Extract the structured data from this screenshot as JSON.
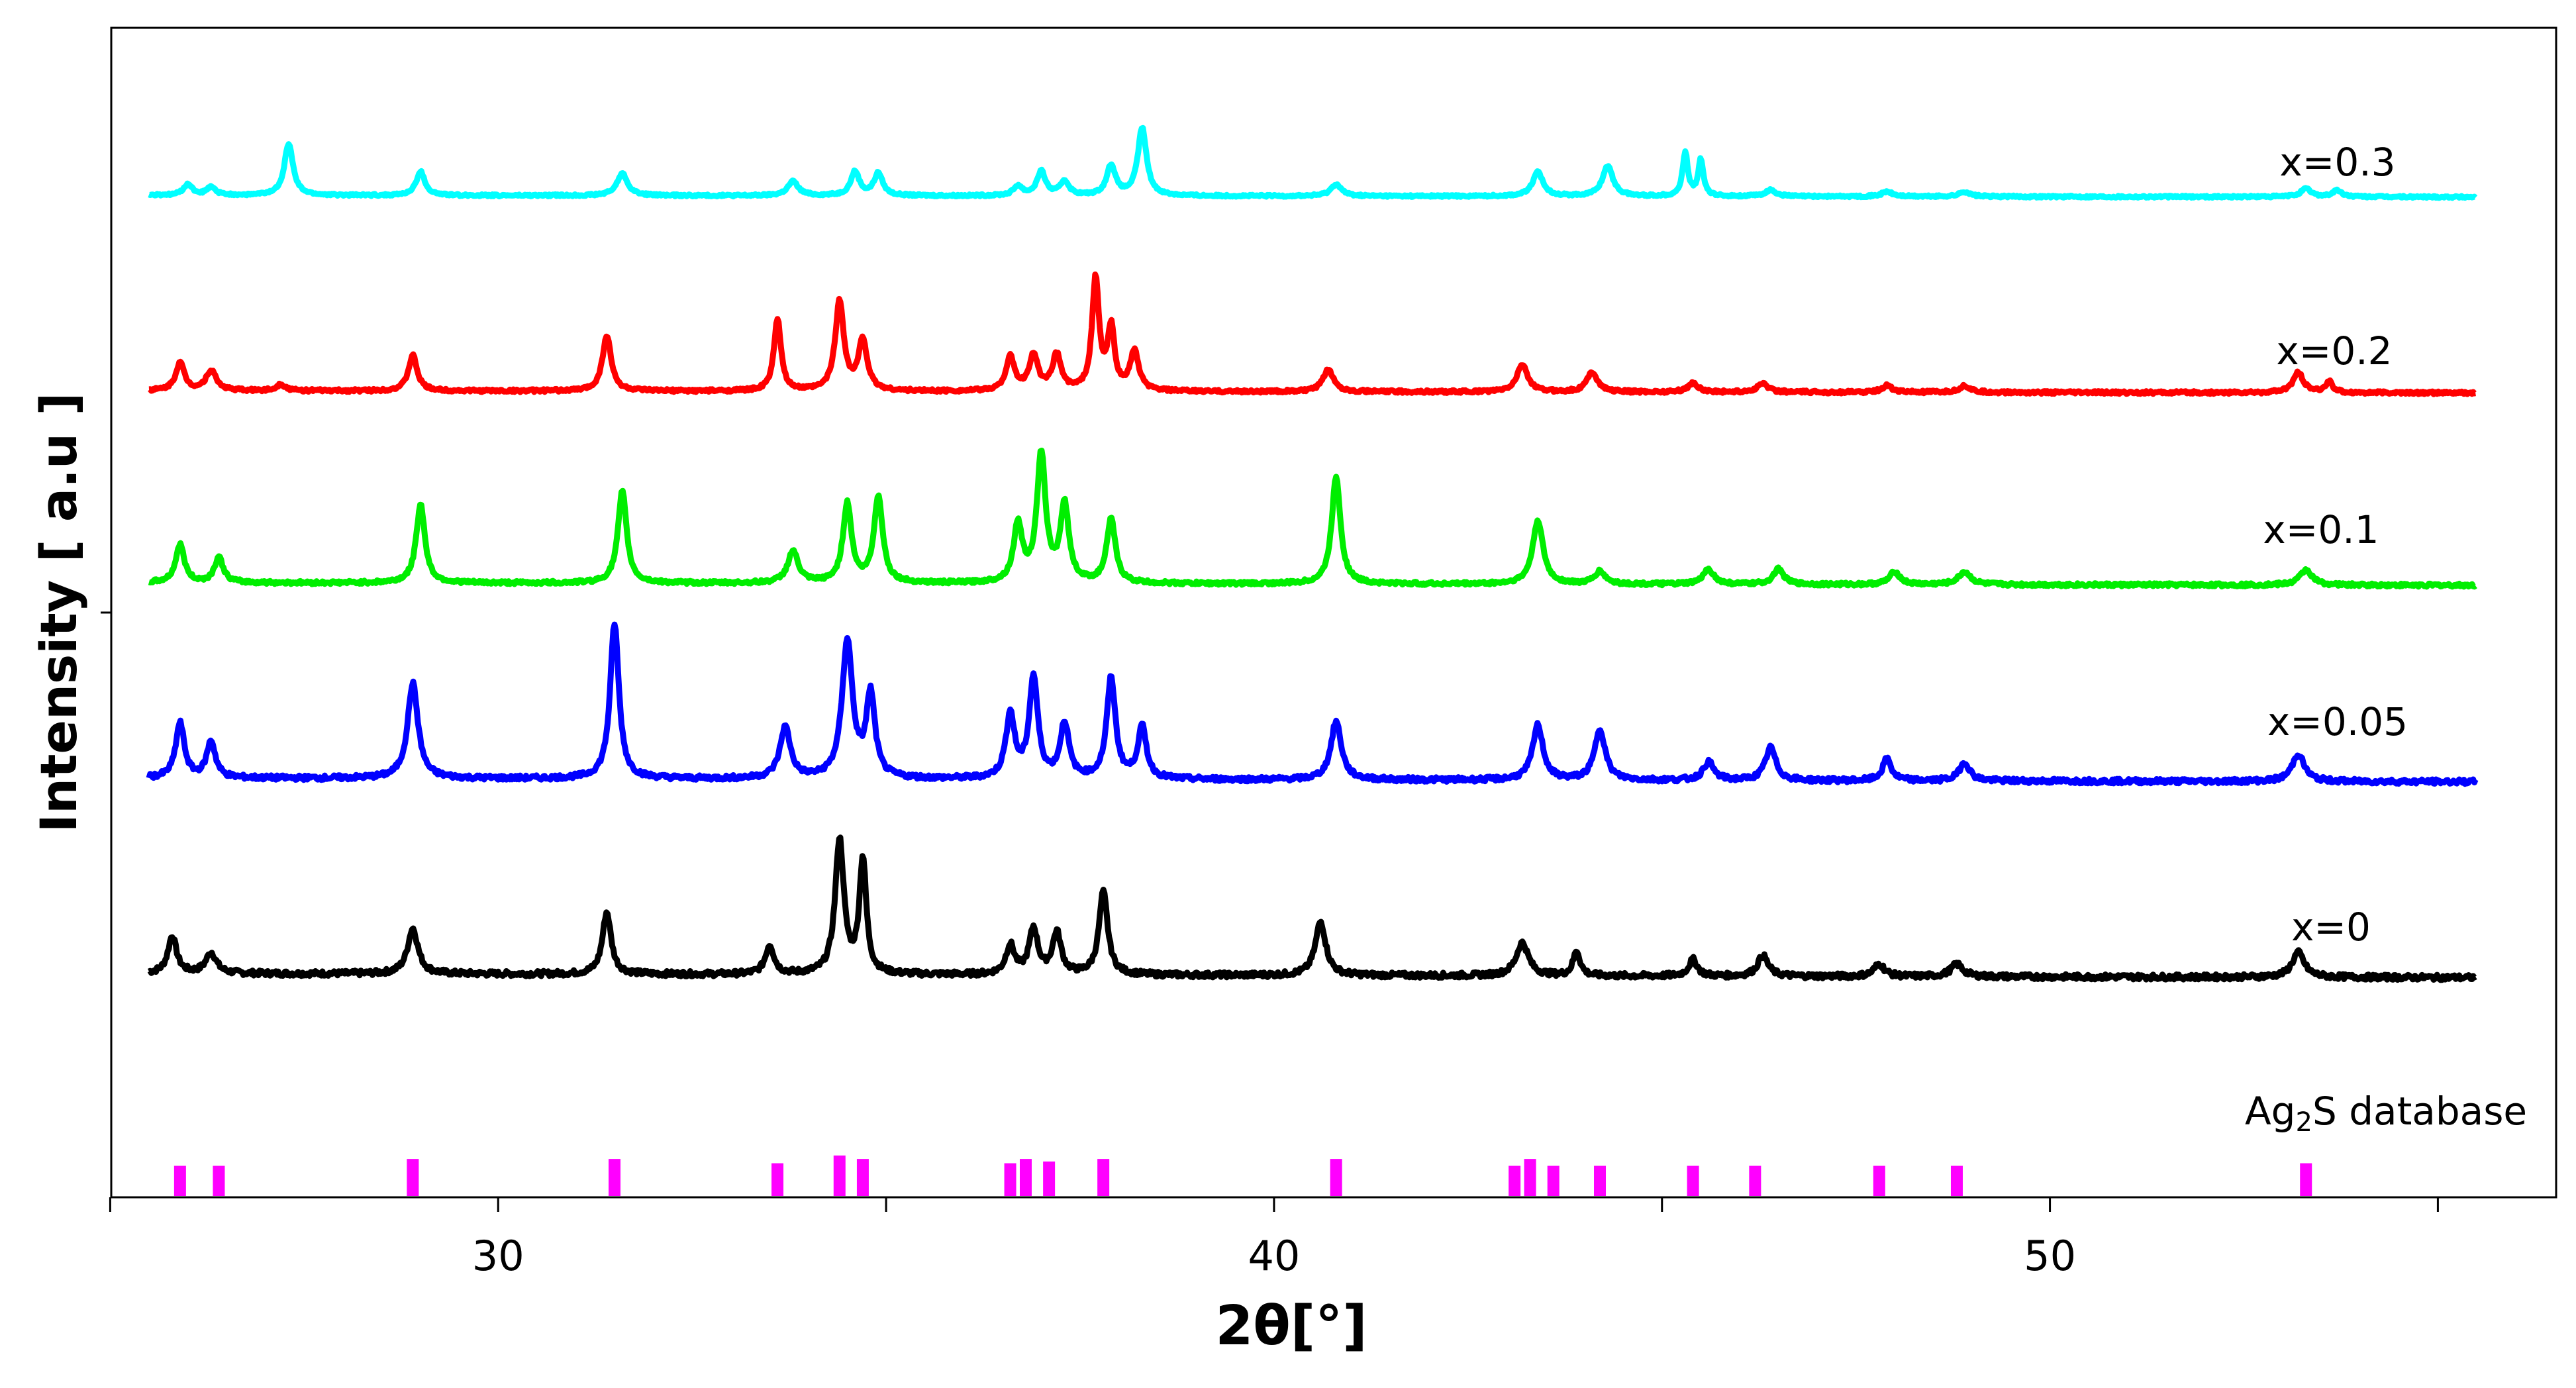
{
  "chart_data": {
    "type": "line",
    "xlabel": "2θ[°]",
    "ylabel": "Intensity [ a.u ]",
    "x_ticks": [
      30,
      40,
      50
    ],
    "xlim": [
      25,
      55
    ],
    "grid": false,
    "legend": "labels beside each trace, right side",
    "reference": {
      "label_main": "Ag",
      "label_sub": "2",
      "label_tail": "S database",
      "color": "#ff00ff",
      "peaks": [
        {
          "x": 25.9,
          "h": 0.35
        },
        {
          "x": 26.4,
          "h": 0.35
        },
        {
          "x": 28.9,
          "h": 0.43
        },
        {
          "x": 31.5,
          "h": 0.43
        },
        {
          "x": 33.6,
          "h": 0.38
        },
        {
          "x": 34.4,
          "h": 0.47
        },
        {
          "x": 34.7,
          "h": 0.43
        },
        {
          "x": 36.6,
          "h": 0.38
        },
        {
          "x": 36.8,
          "h": 0.43
        },
        {
          "x": 37.1,
          "h": 0.4
        },
        {
          "x": 37.8,
          "h": 0.43
        },
        {
          "x": 40.8,
          "h": 0.43
        },
        {
          "x": 43.1,
          "h": 0.35
        },
        {
          "x": 43.3,
          "h": 0.43
        },
        {
          "x": 43.6,
          "h": 0.35
        },
        {
          "x": 44.2,
          "h": 0.35
        },
        {
          "x": 45.4,
          "h": 0.35
        },
        {
          "x": 46.2,
          "h": 0.35
        },
        {
          "x": 47.8,
          "h": 0.35
        },
        {
          "x": 48.8,
          "h": 0.35
        },
        {
          "x": 53.3,
          "h": 0.38
        }
      ]
    },
    "series": [
      {
        "name": "x=0",
        "color": "#000000",
        "baseline": [
          0.0,
          -0.2
        ],
        "peaks": [
          {
            "x": 25.8,
            "h": 0.18,
            "w": 0.1
          },
          {
            "x": 26.3,
            "h": 0.1,
            "w": 0.12
          },
          {
            "x": 28.9,
            "h": 0.22,
            "w": 0.12
          },
          {
            "x": 31.4,
            "h": 0.3,
            "w": 0.1
          },
          {
            "x": 33.5,
            "h": 0.14,
            "w": 0.1
          },
          {
            "x": 34.4,
            "h": 0.65,
            "w": 0.1
          },
          {
            "x": 34.7,
            "h": 0.55,
            "w": 0.08
          },
          {
            "x": 36.6,
            "h": 0.14,
            "w": 0.1
          },
          {
            "x": 36.9,
            "h": 0.22,
            "w": 0.1
          },
          {
            "x": 37.2,
            "h": 0.2,
            "w": 0.1
          },
          {
            "x": 37.8,
            "h": 0.4,
            "w": 0.1
          },
          {
            "x": 40.6,
            "h": 0.26,
            "w": 0.12
          },
          {
            "x": 43.2,
            "h": 0.16,
            "w": 0.14
          },
          {
            "x": 43.9,
            "h": 0.12,
            "w": 0.08
          },
          {
            "x": 45.4,
            "h": 0.08,
            "w": 0.1
          },
          {
            "x": 46.3,
            "h": 0.1,
            "w": 0.12
          },
          {
            "x": 47.8,
            "h": 0.06,
            "w": 0.12
          },
          {
            "x": 48.8,
            "h": 0.06,
            "w": 0.14
          },
          {
            "x": 53.2,
            "h": 0.12,
            "w": 0.14
          }
        ]
      },
      {
        "name": "x=0.05",
        "color": "#0000ff",
        "baseline": [
          0.0,
          -0.2
        ],
        "peaks": [
          {
            "x": 25.9,
            "h": 0.3,
            "w": 0.1
          },
          {
            "x": 26.3,
            "h": 0.2,
            "w": 0.1
          },
          {
            "x": 28.9,
            "h": 0.52,
            "w": 0.12
          },
          {
            "x": 31.5,
            "h": 0.85,
            "w": 0.1
          },
          {
            "x": 33.7,
            "h": 0.28,
            "w": 0.12
          },
          {
            "x": 34.5,
            "h": 0.75,
            "w": 0.12
          },
          {
            "x": 34.8,
            "h": 0.45,
            "w": 0.1
          },
          {
            "x": 36.6,
            "h": 0.35,
            "w": 0.1
          },
          {
            "x": 36.9,
            "h": 0.55,
            "w": 0.1
          },
          {
            "x": 37.3,
            "h": 0.3,
            "w": 0.1
          },
          {
            "x": 37.9,
            "h": 0.55,
            "w": 0.1
          },
          {
            "x": 38.3,
            "h": 0.28,
            "w": 0.1
          },
          {
            "x": 40.8,
            "h": 0.32,
            "w": 0.12
          },
          {
            "x": 43.4,
            "h": 0.3,
            "w": 0.12
          },
          {
            "x": 44.2,
            "h": 0.28,
            "w": 0.12
          },
          {
            "x": 45.6,
            "h": 0.1,
            "w": 0.12
          },
          {
            "x": 46.4,
            "h": 0.18,
            "w": 0.12
          },
          {
            "x": 47.9,
            "h": 0.12,
            "w": 0.1
          },
          {
            "x": 48.9,
            "h": 0.1,
            "w": 0.12
          },
          {
            "x": 53.2,
            "h": 0.15,
            "w": 0.14
          }
        ]
      },
      {
        "name": "x=0.1",
        "color": "#00ee00",
        "baseline": [
          0.0,
          -0.2
        ],
        "peaks": [
          {
            "x": 25.9,
            "h": 0.3,
            "w": 0.1
          },
          {
            "x": 26.4,
            "h": 0.2,
            "w": 0.1
          },
          {
            "x": 29.0,
            "h": 0.62,
            "w": 0.1
          },
          {
            "x": 31.6,
            "h": 0.72,
            "w": 0.1
          },
          {
            "x": 33.8,
            "h": 0.25,
            "w": 0.12
          },
          {
            "x": 34.5,
            "h": 0.62,
            "w": 0.1
          },
          {
            "x": 34.9,
            "h": 0.68,
            "w": 0.1
          },
          {
            "x": 36.7,
            "h": 0.45,
            "w": 0.1
          },
          {
            "x": 37.0,
            "h": 1.0,
            "w": 0.1
          },
          {
            "x": 37.3,
            "h": 0.6,
            "w": 0.1
          },
          {
            "x": 37.9,
            "h": 0.5,
            "w": 0.1
          },
          {
            "x": 40.8,
            "h": 0.85,
            "w": 0.1
          },
          {
            "x": 43.4,
            "h": 0.5,
            "w": 0.12
          },
          {
            "x": 44.2,
            "h": 0.1,
            "w": 0.12
          },
          {
            "x": 45.6,
            "h": 0.12,
            "w": 0.12
          },
          {
            "x": 46.5,
            "h": 0.12,
            "w": 0.12
          },
          {
            "x": 48.0,
            "h": 0.1,
            "w": 0.12
          },
          {
            "x": 48.9,
            "h": 0.1,
            "w": 0.14
          },
          {
            "x": 53.3,
            "h": 0.12,
            "w": 0.14
          }
        ]
      },
      {
        "name": "x=0.2",
        "color": "#ff0000",
        "baseline": [
          0.0,
          -0.2
        ],
        "peaks": [
          {
            "x": 25.9,
            "h": 0.25,
            "w": 0.1
          },
          {
            "x": 26.3,
            "h": 0.18,
            "w": 0.12
          },
          {
            "x": 27.2,
            "h": 0.06,
            "w": 0.1
          },
          {
            "x": 28.9,
            "h": 0.32,
            "w": 0.1
          },
          {
            "x": 31.4,
            "h": 0.5,
            "w": 0.1
          },
          {
            "x": 33.6,
            "h": 0.65,
            "w": 0.08
          },
          {
            "x": 34.4,
            "h": 0.8,
            "w": 0.1
          },
          {
            "x": 34.7,
            "h": 0.45,
            "w": 0.1
          },
          {
            "x": 36.6,
            "h": 0.3,
            "w": 0.1
          },
          {
            "x": 36.9,
            "h": 0.32,
            "w": 0.1
          },
          {
            "x": 37.2,
            "h": 0.32,
            "w": 0.1
          },
          {
            "x": 37.7,
            "h": 1.0,
            "w": 0.08
          },
          {
            "x": 37.9,
            "h": 0.55,
            "w": 0.08
          },
          {
            "x": 38.2,
            "h": 0.35,
            "w": 0.1
          },
          {
            "x": 40.7,
            "h": 0.2,
            "w": 0.12
          },
          {
            "x": 43.2,
            "h": 0.25,
            "w": 0.12
          },
          {
            "x": 44.1,
            "h": 0.18,
            "w": 0.12
          },
          {
            "x": 45.4,
            "h": 0.08,
            "w": 0.12
          },
          {
            "x": 46.3,
            "h": 0.08,
            "w": 0.12
          },
          {
            "x": 47.9,
            "h": 0.06,
            "w": 0.12
          },
          {
            "x": 48.9,
            "h": 0.06,
            "w": 0.12
          },
          {
            "x": 53.2,
            "h": 0.18,
            "w": 0.12
          },
          {
            "x": 53.6,
            "h": 0.1,
            "w": 0.08
          }
        ]
      },
      {
        "name": "x=0.3",
        "color": "#00ffff",
        "baseline": [
          0.0,
          -0.2
        ],
        "peaks": [
          {
            "x": 26.0,
            "h": 0.14,
            "w": 0.1
          },
          {
            "x": 26.3,
            "h": 0.1,
            "w": 0.1
          },
          {
            "x": 27.3,
            "h": 0.65,
            "w": 0.1
          },
          {
            "x": 29.0,
            "h": 0.3,
            "w": 0.1
          },
          {
            "x": 31.6,
            "h": 0.28,
            "w": 0.12
          },
          {
            "x": 33.8,
            "h": 0.18,
            "w": 0.12
          },
          {
            "x": 34.6,
            "h": 0.3,
            "w": 0.1
          },
          {
            "x": 34.9,
            "h": 0.28,
            "w": 0.1
          },
          {
            "x": 36.7,
            "h": 0.12,
            "w": 0.1
          },
          {
            "x": 37.0,
            "h": 0.3,
            "w": 0.1
          },
          {
            "x": 37.3,
            "h": 0.18,
            "w": 0.1
          },
          {
            "x": 37.9,
            "h": 0.38,
            "w": 0.1
          },
          {
            "x": 38.3,
            "h": 0.85,
            "w": 0.1
          },
          {
            "x": 40.8,
            "h": 0.15,
            "w": 0.12
          },
          {
            "x": 43.4,
            "h": 0.3,
            "w": 0.12
          },
          {
            "x": 44.3,
            "h": 0.38,
            "w": 0.12
          },
          {
            "x": 45.3,
            "h": 0.55,
            "w": 0.06
          },
          {
            "x": 45.5,
            "h": 0.45,
            "w": 0.06
          },
          {
            "x": 46.4,
            "h": 0.08,
            "w": 0.12
          },
          {
            "x": 47.9,
            "h": 0.06,
            "w": 0.12
          },
          {
            "x": 48.9,
            "h": 0.06,
            "w": 0.12
          },
          {
            "x": 53.3,
            "h": 0.1,
            "w": 0.12
          },
          {
            "x": 53.7,
            "h": 0.08,
            "w": 0.1
          }
        ]
      }
    ]
  }
}
